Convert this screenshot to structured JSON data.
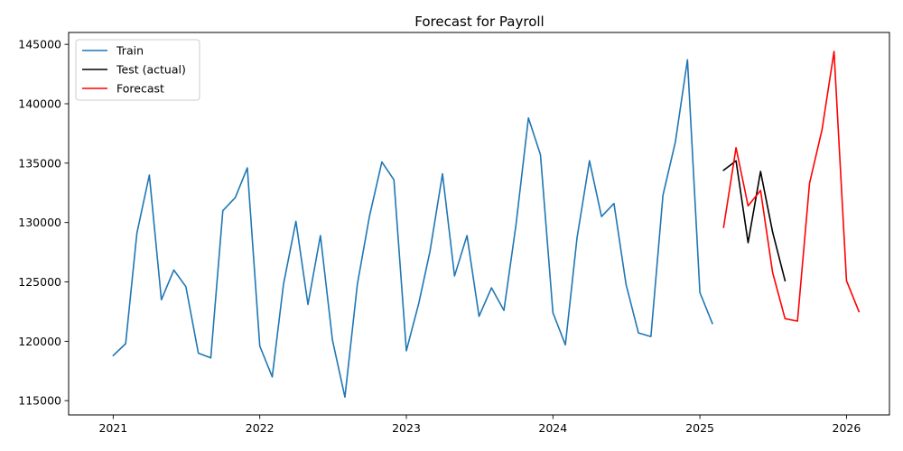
{
  "chart_data": {
    "type": "line",
    "title": "Forecast for Payroll",
    "xlabel": "",
    "ylabel": "",
    "xlim": [
      "2020-09-12",
      "2026-04-18"
    ],
    "ylim": [
      113800,
      146000
    ],
    "x_ticks": [
      {
        "date": "2021-01-01",
        "label": "2021"
      },
      {
        "date": "2022-01-01",
        "label": "2022"
      },
      {
        "date": "2023-01-01",
        "label": "2023"
      },
      {
        "date": "2024-01-01",
        "label": "2024"
      },
      {
        "date": "2025-01-01",
        "label": "2025"
      },
      {
        "date": "2026-01-01",
        "label": "2026"
      }
    ],
    "y_ticks": [
      {
        "value": 115000,
        "label": "115000"
      },
      {
        "value": 120000,
        "label": "120000"
      },
      {
        "value": 125000,
        "label": "125000"
      },
      {
        "value": 130000,
        "label": "130000"
      },
      {
        "value": 135000,
        "label": "135000"
      },
      {
        "value": 140000,
        "label": "140000"
      },
      {
        "value": 145000,
        "label": "145000"
      }
    ],
    "grid": false,
    "legend_position": "upper-left",
    "series": [
      {
        "name": "Train",
        "color": "#1f77b4",
        "x": [
          "2021-01-01",
          "2021-02-01",
          "2021-03-01",
          "2021-04-01",
          "2021-05-01",
          "2021-06-01",
          "2021-07-01",
          "2021-08-01",
          "2021-09-01",
          "2021-10-01",
          "2021-11-01",
          "2021-12-01",
          "2022-01-01",
          "2022-02-01",
          "2022-03-01",
          "2022-04-01",
          "2022-05-01",
          "2022-06-01",
          "2022-07-01",
          "2022-08-01",
          "2022-09-01",
          "2022-10-01",
          "2022-11-01",
          "2022-12-01",
          "2023-01-01",
          "2023-02-01",
          "2023-03-01",
          "2023-04-01",
          "2023-05-01",
          "2023-06-01",
          "2023-07-01",
          "2023-08-01",
          "2023-09-01",
          "2023-10-01",
          "2023-11-01",
          "2023-12-01",
          "2024-01-01",
          "2024-02-01",
          "2024-03-01",
          "2024-04-01",
          "2024-05-01",
          "2024-06-01",
          "2024-07-01",
          "2024-08-01",
          "2024-09-01",
          "2024-10-01",
          "2024-11-01",
          "2024-12-01",
          "2025-01-01",
          "2025-02-01"
        ],
        "values": [
          118800,
          119800,
          129100,
          134000,
          123500,
          126000,
          124600,
          119000,
          118600,
          131000,
          132100,
          134600,
          119600,
          117000,
          124800,
          130100,
          123100,
          128900,
          120100,
          115300,
          124800,
          130500,
          135100,
          133600,
          119200,
          123200,
          127600,
          134100,
          125500,
          128900,
          122100,
          124500,
          122600,
          129800,
          138800,
          135700,
          122400,
          119700,
          128700,
          135200,
          130500,
          131600,
          124800,
          120700,
          120400,
          132300,
          136800,
          143700,
          124100,
          121500
        ]
      },
      {
        "name": "Test (actual)",
        "color": "#000000",
        "x": [
          "2025-03-01",
          "2025-04-01",
          "2025-05-01",
          "2025-06-01",
          "2025-07-01",
          "2025-08-01"
        ],
        "values": [
          134400,
          135200,
          128300,
          134300,
          129200,
          125100
        ]
      },
      {
        "name": "Forecast",
        "color": "#ff0000",
        "x": [
          "2025-03-01",
          "2025-04-01",
          "2025-05-01",
          "2025-06-01",
          "2025-07-01",
          "2025-08-01",
          "2025-09-01",
          "2025-10-01",
          "2025-11-01",
          "2025-12-01",
          "2026-01-01",
          "2026-02-01"
        ],
        "values": [
          129600,
          136300,
          131400,
          132700,
          125800,
          121900,
          121700,
          133300,
          137800,
          144400,
          125100,
          122500
        ]
      }
    ]
  }
}
